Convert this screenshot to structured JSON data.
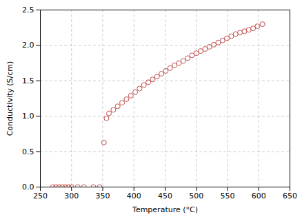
{
  "chart_data": {
    "type": "scatter",
    "xlabel": "Temperature (°C)",
    "ylabel": "Conductivity (S/cm)",
    "x": [
      270,
      275,
      280,
      285,
      290,
      295,
      300,
      310,
      320,
      335,
      345,
      352,
      356,
      360,
      367,
      374,
      381,
      388,
      395,
      402,
      409,
      416,
      423,
      430,
      437,
      444,
      451,
      458,
      465,
      472,
      479,
      486,
      493,
      500,
      507,
      514,
      521,
      528,
      535,
      542,
      549,
      556,
      563,
      570,
      577,
      584,
      591,
      598,
      606
    ],
    "values": [
      0.0,
      0.0,
      0.0,
      0.0,
      0.0,
      0.0,
      0.0,
      0.0,
      0.0,
      0.0,
      0.0,
      0.63,
      0.97,
      1.04,
      1.09,
      1.14,
      1.19,
      1.24,
      1.29,
      1.34,
      1.39,
      1.44,
      1.48,
      1.52,
      1.56,
      1.6,
      1.64,
      1.68,
      1.72,
      1.75,
      1.78,
      1.82,
      1.86,
      1.89,
      1.92,
      1.95,
      1.98,
      2.01,
      2.04,
      2.07,
      2.1,
      2.13,
      2.16,
      2.18,
      2.2,
      2.22,
      2.24,
      2.27,
      2.3
    ],
    "color": "#c0504d",
    "marker": "circle",
    "xlim": [
      250,
      650
    ],
    "ylim": [
      0.0,
      2.5
    ],
    "xticks": [
      250,
      300,
      350,
      400,
      450,
      500,
      550,
      600,
      650
    ],
    "yticks": [
      {
        "value": 0.0,
        "label": "0.0"
      },
      0.5,
      {
        "value": 1.0,
        "label": "1.0"
      },
      1.5,
      {
        "value": 2.0,
        "label": "2.0"
      },
      2.5
    ],
    "grid": true
  }
}
